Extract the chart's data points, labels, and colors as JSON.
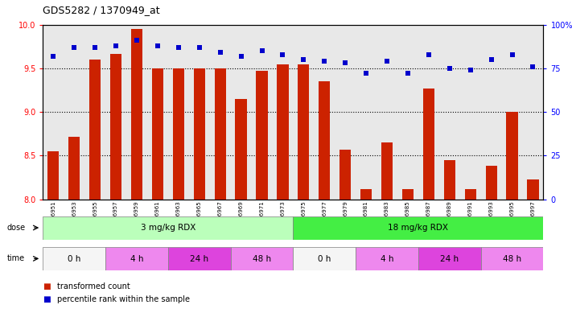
{
  "title": "GDS5282 / 1370949_at",
  "samples": [
    "GSM306951",
    "GSM306953",
    "GSM306955",
    "GSM306957",
    "GSM306959",
    "GSM306961",
    "GSM306963",
    "GSM306965",
    "GSM306967",
    "GSM306969",
    "GSM306971",
    "GSM306973",
    "GSM306975",
    "GSM306977",
    "GSM306979",
    "GSM306981",
    "GSM306983",
    "GSM306985",
    "GSM306987",
    "GSM306989",
    "GSM306991",
    "GSM306993",
    "GSM306995",
    "GSM306997"
  ],
  "bar_values": [
    8.55,
    8.72,
    9.6,
    9.67,
    9.95,
    9.5,
    9.5,
    9.5,
    9.5,
    9.15,
    9.47,
    9.55,
    9.55,
    9.35,
    8.57,
    8.12,
    8.65,
    8.12,
    9.27,
    8.45,
    8.12,
    8.38,
    9.0,
    8.23
  ],
  "percentile_values": [
    82,
    87,
    87,
    88,
    91,
    88,
    87,
    87,
    84,
    82,
    85,
    83,
    80,
    79,
    78,
    72,
    79,
    72,
    83,
    75,
    74,
    80,
    83,
    76
  ],
  "bar_color": "#cc2200",
  "percentile_color": "#0000cc",
  "ylim_left": [
    8.0,
    10.0
  ],
  "ylim_right": [
    0,
    100
  ],
  "yticks_left": [
    8.0,
    8.5,
    9.0,
    9.5,
    10.0
  ],
  "yticks_right": [
    0,
    25,
    50,
    75,
    100
  ],
  "hlines": [
    8.5,
    9.0,
    9.5
  ],
  "dose_groups": [
    {
      "label": "3 mg/kg RDX",
      "start": 0,
      "end": 12,
      "color": "#bbffbb"
    },
    {
      "label": "18 mg/kg RDX",
      "start": 12,
      "end": 24,
      "color": "#44ee44"
    }
  ],
  "time_groups": [
    {
      "label": "0 h",
      "start": 0,
      "end": 3,
      "color": "#f5f5f5"
    },
    {
      "label": "4 h",
      "start": 3,
      "end": 6,
      "color": "#ee88ee"
    },
    {
      "label": "24 h",
      "start": 6,
      "end": 9,
      "color": "#dd44dd"
    },
    {
      "label": "48 h",
      "start": 9,
      "end": 12,
      "color": "#ee88ee"
    },
    {
      "label": "0 h",
      "start": 12,
      "end": 15,
      "color": "#f5f5f5"
    },
    {
      "label": "4 h",
      "start": 15,
      "end": 18,
      "color": "#ee88ee"
    },
    {
      "label": "24 h",
      "start": 18,
      "end": 21,
      "color": "#dd44dd"
    },
    {
      "label": "48 h",
      "start": 21,
      "end": 24,
      "color": "#ee88ee"
    }
  ],
  "legend_items": [
    {
      "label": "transformed count",
      "color": "#cc2200"
    },
    {
      "label": "percentile rank within the sample",
      "color": "#0000cc"
    }
  ],
  "background_color": "#ffffff",
  "plot_bg_color": "#e8e8e8"
}
